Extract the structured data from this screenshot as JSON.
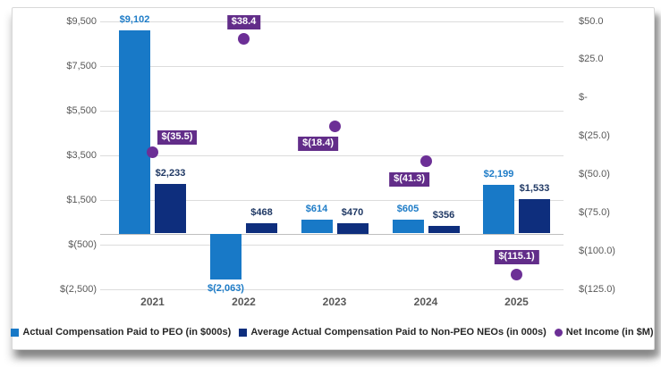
{
  "chart_data": {
    "type": "combo",
    "categories": [
      "2021",
      "2022",
      "2023",
      "2024",
      "2025"
    ],
    "series": [
      {
        "name": "Actual Compensation Paid to PEO (in $000s)",
        "type": "bar",
        "axis": "left",
        "color": "#1879C7",
        "label_color": "#1E7CC7",
        "values": [
          9102,
          -2063,
          614,
          605,
          2199
        ],
        "labels": [
          "$9,102",
          "$(2,063)",
          "$614",
          "$605",
          "$2,199"
        ]
      },
      {
        "name": "Average Actual Compensation Paid to Non-PEO NEOs (in 000s)",
        "type": "bar",
        "axis": "left",
        "color": "#0E2E7D",
        "label_color": "#1F3864",
        "values": [
          2233,
          468,
          470,
          356,
          1533
        ],
        "labels": [
          "$2,233",
          "$468",
          "$470",
          "$356",
          "$1,533"
        ]
      },
      {
        "name": "Net Income (in $M)",
        "type": "scatter",
        "axis": "right",
        "color": "#6C2F96",
        "label_bg": "#622D89",
        "values": [
          -35.5,
          38.4,
          -18.4,
          -41.3,
          -115.1
        ],
        "labels": [
          "$(35.5)",
          "$38.4",
          "$(18.4)",
          "$(41.3)",
          "$(115.1)"
        ]
      }
    ],
    "left_axis": {
      "range": [
        -2500,
        9500
      ],
      "tick_values": [
        9500,
        7500,
        5500,
        3500,
        1500,
        -500,
        -2500
      ],
      "tick_labels": [
        "$9,500",
        "$7,500",
        "$5,500",
        "$3,500",
        "$1,500",
        "$(500)",
        "$(2,500)"
      ]
    },
    "right_axis": {
      "range": [
        -125,
        50
      ],
      "tick_values": [
        50,
        25,
        0,
        -25,
        -50,
        -75,
        -100,
        -125
      ],
      "tick_labels": [
        "$50.0",
        "$25.0",
        "$-",
        "$(25.0)",
        "$(50.0)",
        "$(75.0)",
        "$(100.0)",
        "$(125.0)"
      ]
    },
    "grid": true,
    "legend_position": "bottom"
  }
}
